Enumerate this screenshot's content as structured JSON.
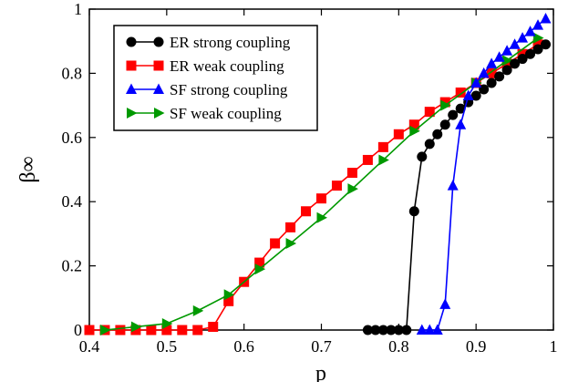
{
  "chart_data": {
    "type": "line",
    "xlabel": "p",
    "ylabel": "β∞",
    "xlim": [
      0.4,
      1.0
    ],
    "ylim": [
      0,
      1
    ],
    "xticks": [
      0.4,
      0.5,
      0.6,
      0.7,
      0.8,
      0.9,
      1
    ],
    "xtick_labels": [
      "0.4",
      "0.5",
      "0.6",
      "0.7",
      "0.8",
      "0.9",
      "1"
    ],
    "yticks": [
      0,
      0.2,
      0.4,
      0.6,
      0.8,
      1
    ],
    "ytick_labels": [
      "0",
      "0.2",
      "0.4",
      "0.6",
      "0.8",
      "1"
    ],
    "grid": false,
    "legend_position": "top-left",
    "series": [
      {
        "name": "ER strong coupling",
        "color": "#000000",
        "marker": "circle",
        "x": [
          0.76,
          0.77,
          0.78,
          0.79,
          0.8,
          0.81,
          0.82,
          0.83,
          0.84,
          0.85,
          0.86,
          0.87,
          0.88,
          0.89,
          0.9,
          0.91,
          0.92,
          0.93,
          0.94,
          0.95,
          0.96,
          0.97,
          0.98,
          0.99
        ],
        "y": [
          0,
          0,
          0,
          0,
          0,
          0,
          0.37,
          0.54,
          0.58,
          0.61,
          0.64,
          0.67,
          0.69,
          0.71,
          0.73,
          0.75,
          0.77,
          0.79,
          0.81,
          0.83,
          0.845,
          0.86,
          0.875,
          0.89
        ]
      },
      {
        "name": "ER weak coupling",
        "color": "#ff0000",
        "marker": "square",
        "x": [
          0.4,
          0.42,
          0.44,
          0.46,
          0.48,
          0.5,
          0.52,
          0.54,
          0.56,
          0.58,
          0.6,
          0.62,
          0.64,
          0.66,
          0.68,
          0.7,
          0.72,
          0.74,
          0.76,
          0.78,
          0.8,
          0.82,
          0.84,
          0.86,
          0.88,
          0.9,
          0.92,
          0.94,
          0.96,
          0.98
        ],
        "y": [
          0,
          0,
          0,
          0,
          0,
          0,
          0,
          0,
          0.01,
          0.09,
          0.15,
          0.21,
          0.27,
          0.32,
          0.37,
          0.41,
          0.45,
          0.49,
          0.53,
          0.57,
          0.61,
          0.64,
          0.68,
          0.71,
          0.74,
          0.77,
          0.8,
          0.83,
          0.86,
          0.89
        ]
      },
      {
        "name": "SF strong coupling",
        "color": "#0000ff",
        "marker": "triangle-up",
        "x": [
          0.83,
          0.84,
          0.85,
          0.86,
          0.87,
          0.88,
          0.89,
          0.9,
          0.91,
          0.92,
          0.93,
          0.94,
          0.95,
          0.96,
          0.97,
          0.98,
          0.99
        ],
        "y": [
          0,
          0,
          0,
          0.08,
          0.45,
          0.64,
          0.73,
          0.77,
          0.8,
          0.83,
          0.85,
          0.87,
          0.89,
          0.91,
          0.93,
          0.95,
          0.97
        ]
      },
      {
        "name": "SF weak coupling",
        "color": "#009900",
        "marker": "triangle-right",
        "x": [
          0.42,
          0.46,
          0.5,
          0.54,
          0.58,
          0.62,
          0.66,
          0.7,
          0.74,
          0.78,
          0.82,
          0.86,
          0.9,
          0.94,
          0.98
        ],
        "y": [
          0,
          0.01,
          0.02,
          0.06,
          0.11,
          0.19,
          0.27,
          0.35,
          0.44,
          0.53,
          0.62,
          0.7,
          0.77,
          0.84,
          0.91
        ]
      }
    ]
  }
}
